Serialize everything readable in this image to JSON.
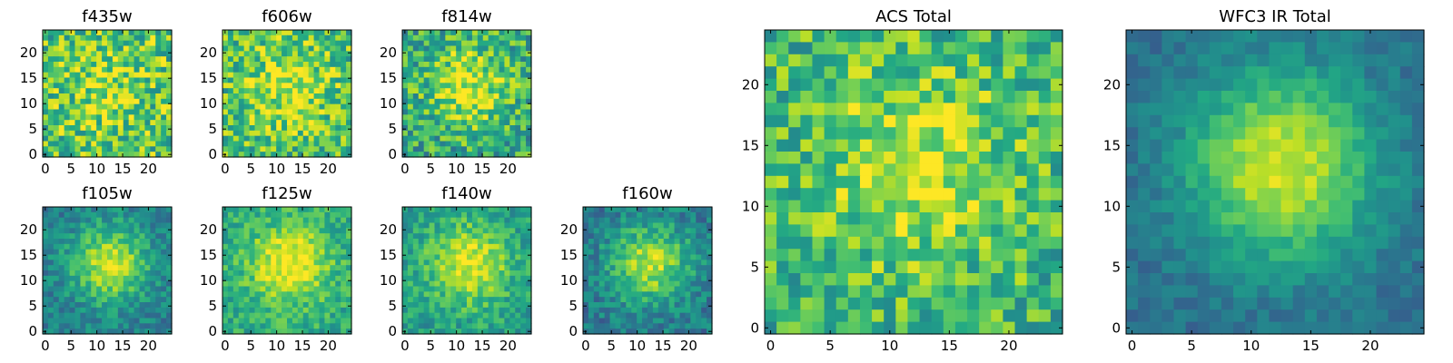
{
  "chart_data": [
    {
      "type": "heatmap",
      "title": "f435w",
      "xlim": [
        0,
        24
      ],
      "ylim": [
        0,
        24
      ],
      "xticks": [
        0,
        5,
        10,
        15,
        20
      ],
      "yticks": [
        0,
        5,
        10,
        15,
        20
      ],
      "colormap": "viridis",
      "signal": 0.15,
      "noise": 0.55,
      "bg": 0.72,
      "seed": 11,
      "cells": 24
    },
    {
      "type": "heatmap",
      "title": "f606w",
      "xlim": [
        0,
        24
      ],
      "ylim": [
        0,
        24
      ],
      "xticks": [
        0,
        5,
        10,
        15,
        20
      ],
      "yticks": [
        0,
        5,
        10,
        15,
        20
      ],
      "colormap": "viridis",
      "signal": 0.22,
      "noise": 0.5,
      "bg": 0.7,
      "seed": 23,
      "cells": 24
    },
    {
      "type": "heatmap",
      "title": "f814w",
      "xlim": [
        0,
        24
      ],
      "ylim": [
        0,
        24
      ],
      "xticks": [
        0,
        5,
        10,
        15,
        20
      ],
      "yticks": [
        0,
        5,
        10,
        15,
        20
      ],
      "colormap": "viridis",
      "signal": 0.35,
      "noise": 0.5,
      "bg": 0.6,
      "seed": 37,
      "cells": 24
    },
    {
      "type": "heatmap",
      "title": "f105w",
      "xlim": [
        0,
        24
      ],
      "ylim": [
        0,
        24
      ],
      "xticks": [
        0,
        5,
        10,
        15,
        20
      ],
      "yticks": [
        0,
        5,
        10,
        15,
        20
      ],
      "colormap": "viridis",
      "signal": 0.5,
      "noise": 0.28,
      "bg": 0.42,
      "seed": 41,
      "cells": 24
    },
    {
      "type": "heatmap",
      "title": "f125w",
      "xlim": [
        0,
        24
      ],
      "ylim": [
        0,
        24
      ],
      "xticks": [
        0,
        5,
        10,
        15,
        20
      ],
      "yticks": [
        0,
        5,
        10,
        15,
        20
      ],
      "colormap": "viridis",
      "signal": 0.42,
      "noise": 0.3,
      "bg": 0.6,
      "seed": 53,
      "cells": 24
    },
    {
      "type": "heatmap",
      "title": "f140w",
      "xlim": [
        0,
        24
      ],
      "ylim": [
        0,
        24
      ],
      "xticks": [
        0,
        5,
        10,
        15,
        20
      ],
      "yticks": [
        0,
        5,
        10,
        15,
        20
      ],
      "colormap": "viridis",
      "signal": 0.42,
      "noise": 0.3,
      "bg": 0.55,
      "seed": 67,
      "cells": 24
    },
    {
      "type": "heatmap",
      "title": "f160w",
      "xlim": [
        0,
        24
      ],
      "ylim": [
        0,
        24
      ],
      "xticks": [
        0,
        5,
        10,
        15,
        20
      ],
      "yticks": [
        0,
        5,
        10,
        15,
        20
      ],
      "colormap": "viridis",
      "signal": 0.5,
      "noise": 0.3,
      "bg": 0.4,
      "seed": 71,
      "cells": 24
    },
    {
      "type": "heatmap",
      "title": "ACS Total",
      "xlim": [
        0,
        24
      ],
      "ylim": [
        0,
        24
      ],
      "xticks": [
        0,
        5,
        10,
        15,
        20
      ],
      "yticks": [
        0,
        5,
        10,
        15,
        20
      ],
      "colormap": "viridis",
      "signal": 0.28,
      "noise": 0.45,
      "bg": 0.66,
      "seed": 83,
      "cells": 25
    },
    {
      "type": "heatmap",
      "title": "WFC3 IR Total",
      "xlim": [
        0,
        24
      ],
      "ylim": [
        0,
        24
      ],
      "xticks": [
        0,
        5,
        10,
        15,
        20
      ],
      "yticks": [
        0,
        5,
        10,
        15,
        20
      ],
      "colormap": "viridis",
      "signal": 0.58,
      "noise": 0.16,
      "bg": 0.36,
      "seed": 97,
      "cells": 25
    }
  ]
}
